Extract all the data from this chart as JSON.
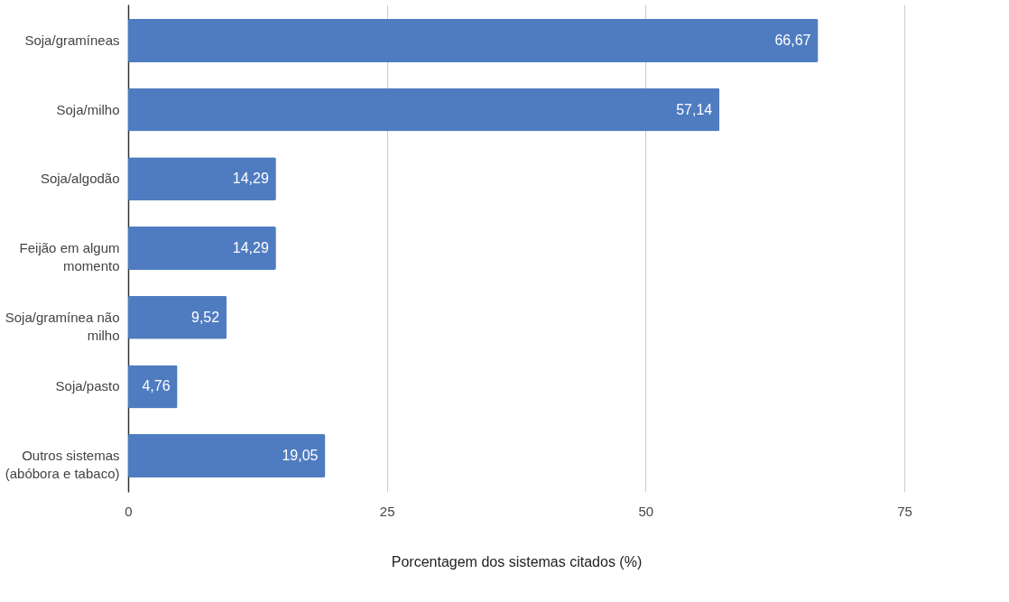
{
  "chart_data": {
    "type": "bar",
    "orientation": "horizontal",
    "xlabel": "Porcentagem dos sistemas citados (%)",
    "categories": [
      "Soja/gramíneas",
      "Soja/milho",
      "Soja/algodão",
      "Feijão em algum momento",
      "Soja/gramínea não milho",
      "Soja/pasto",
      "Outros sistemas (abóbora e tabaco)"
    ],
    "values": [
      66.67,
      57.14,
      14.29,
      14.29,
      9.52,
      4.76,
      19.05
    ],
    "value_labels": [
      "66,67",
      "57,14",
      "14,29",
      "14,29",
      "9,52",
      "4,76",
      "19,05"
    ],
    "color": "#4f7cc0",
    "xlim": [
      0,
      75
    ],
    "xticks": [
      0,
      25,
      50,
      75
    ],
    "grid": "x"
  }
}
